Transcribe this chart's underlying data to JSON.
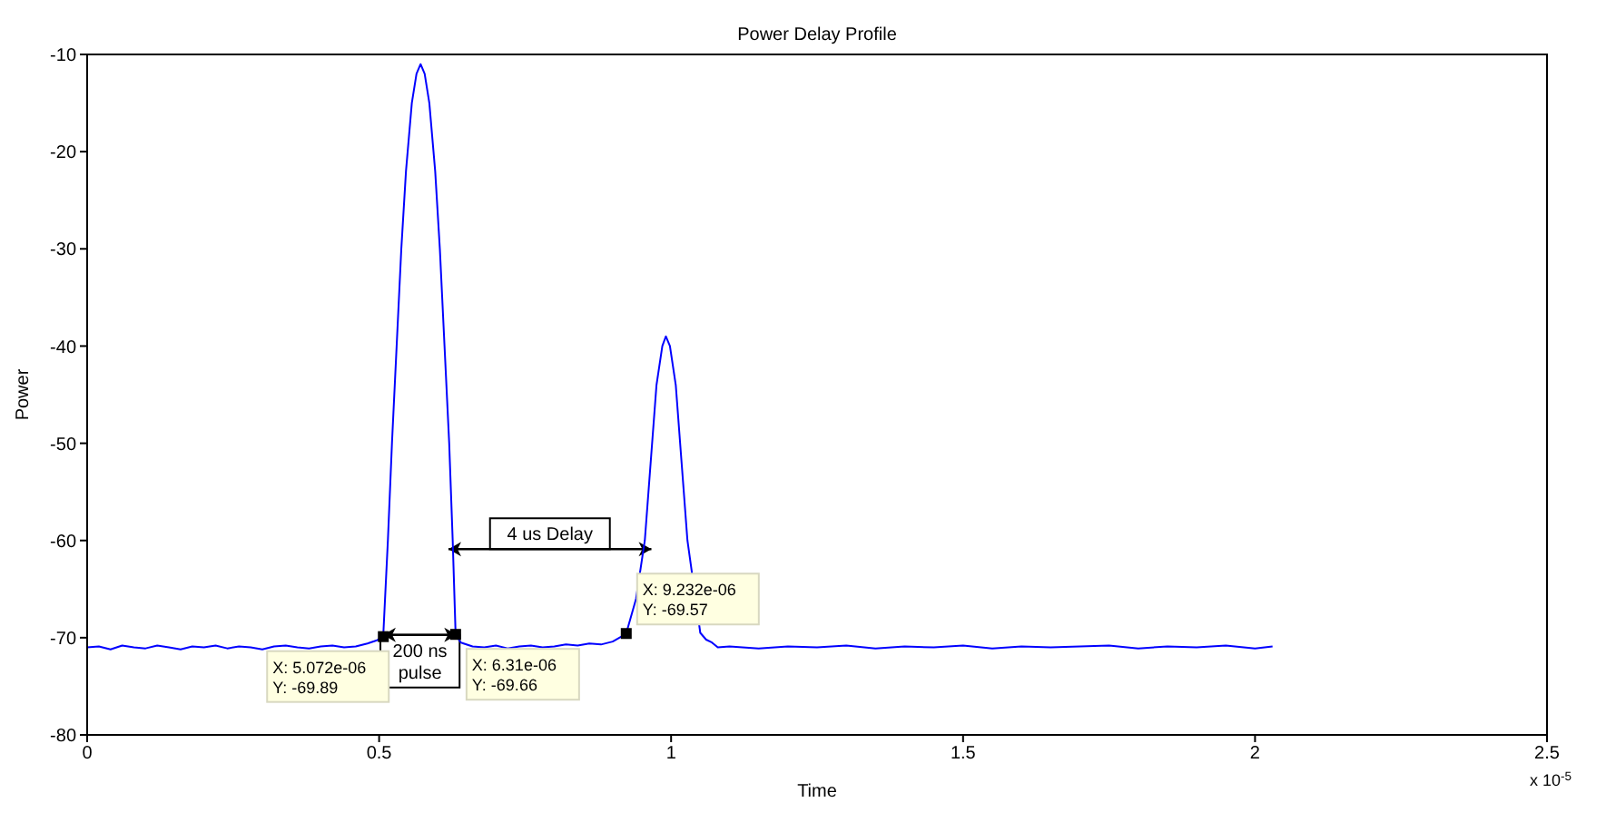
{
  "chart_data": {
    "type": "line",
    "title": "Power Delay Profile",
    "xlabel": "Time",
    "ylabel": "Power",
    "xlim": [
      0,
      2.5
    ],
    "xticks": [
      0,
      0.5,
      1,
      1.5,
      2,
      2.5
    ],
    "ylim": [
      -80,
      -10
    ],
    "yticks": [
      -80,
      -70,
      -60,
      -50,
      -40,
      -30,
      -20,
      -10
    ],
    "grid": false,
    "legend": false,
    "marker": "none",
    "line_style": "solid",
    "series": [
      {
        "type": "line",
        "color": "#0000ff",
        "x": [
          0,
          0.02,
          0.04,
          0.06,
          0.08,
          0.1,
          0.12,
          0.14,
          0.16,
          0.18,
          0.2,
          0.22,
          0.24,
          0.26,
          0.28,
          0.3,
          0.32,
          0.34,
          0.36,
          0.38,
          0.4,
          0.42,
          0.44,
          0.46,
          0.48,
          0.495,
          0.507,
          0.515,
          0.522,
          0.53,
          0.538,
          0.546,
          0.556,
          0.564,
          0.571,
          0.578,
          0.586,
          0.596,
          0.604,
          0.612,
          0.62,
          0.626,
          0.631,
          0.64,
          0.66,
          0.68,
          0.7,
          0.72,
          0.74,
          0.76,
          0.78,
          0.8,
          0.82,
          0.84,
          0.86,
          0.88,
          0.9,
          0.923,
          0.94,
          0.955,
          0.965,
          0.975,
          0.985,
          0.991,
          0.998,
          1.008,
          1.018,
          1.028,
          1.05,
          1.06,
          1.07,
          1.08,
          1.1,
          1.15,
          1.2,
          1.25,
          1.3,
          1.35,
          1.4,
          1.45,
          1.5,
          1.55,
          1.6,
          1.65,
          1.7,
          1.75,
          1.8,
          1.85,
          1.9,
          1.95,
          2,
          2.03
        ],
        "values": [
          -71,
          -70.9,
          -71.2,
          -70.8,
          -71,
          -71.1,
          -70.8,
          -71,
          -71.2,
          -70.9,
          -71,
          -70.8,
          -71.1,
          -70.9,
          -71,
          -71.2,
          -70.9,
          -70.8,
          -71,
          -71.1,
          -70.9,
          -70.8,
          -71,
          -70.9,
          -70.6,
          -70.3,
          -69.9,
          -60,
          -50,
          -40,
          -30,
          -22,
          -15,
          -12,
          -11,
          -12,
          -15,
          -22,
          -30,
          -40,
          -50,
          -60,
          -69.7,
          -70.5,
          -70.9,
          -71,
          -70.8,
          -71.1,
          -70.9,
          -70.8,
          -71,
          -70.9,
          -70.7,
          -70.8,
          -70.6,
          -70.7,
          -70.4,
          -69.6,
          -66,
          -60,
          -52,
          -44,
          -40,
          -39,
          -40,
          -44,
          -52,
          -60,
          -69.5,
          -70.2,
          -70.5,
          -71,
          -70.9,
          -71.1,
          -70.9,
          -71,
          -70.8,
          -71.1,
          -70.9,
          -71,
          -70.8,
          -71.1,
          -70.9,
          -71,
          -70.9,
          -70.8,
          -71.1,
          -70.9,
          -71,
          -70.8,
          -71.1,
          -70.9
        ]
      },
      {
        "type": "scatter",
        "marker": "square",
        "color": "#000000",
        "x": [
          0.5072,
          0.631,
          0.9232
        ],
        "values": [
          -69.89,
          -69.66,
          -69.57
        ],
        "value_labels": [
          "X: 5.072e-06\nY: -69.89",
          "X: 6.31e-06\nY: -69.66",
          "X: 9.232e-06\nY: -69.57"
        ]
      }
    ],
    "annotations": [
      "200 ns\npulse",
      "4 us Delay",
      "x 10$^{-5}$"
    ]
  }
}
